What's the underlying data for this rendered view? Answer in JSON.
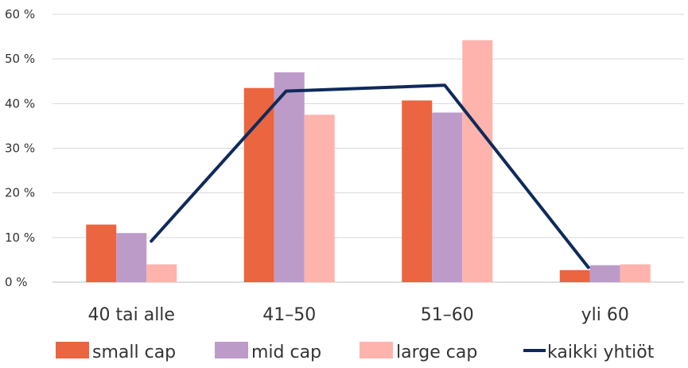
{
  "chart_data": {
    "type": "bar",
    "categories": [
      "40 tai alle",
      "41–50",
      "51–60",
      "yli 60"
    ],
    "series": [
      {
        "name": "small cap",
        "kind": "bar",
        "color": "#EA6540",
        "values": [
          12.9,
          43.5,
          40.7,
          2.7
        ]
      },
      {
        "name": "mid cap",
        "kind": "bar",
        "color": "#BC9BC9",
        "values": [
          11.0,
          47.0,
          38.0,
          3.8
        ]
      },
      {
        "name": "large cap",
        "kind": "bar",
        "color": "#FFB3AD",
        "values": [
          4.0,
          37.5,
          54.2,
          4.0
        ]
      },
      {
        "name": "kaikki yhtiöt",
        "kind": "line",
        "color": "#0F2A5A",
        "values": [
          9.2,
          42.8,
          44.1,
          3.3
        ]
      }
    ],
    "yticks": [
      {
        "value": 0,
        "label": "0 %"
      },
      {
        "value": 10,
        "label": "10 %"
      },
      {
        "value": 20,
        "label": "20 %"
      },
      {
        "value": 30,
        "label": "30 %"
      },
      {
        "value": 40,
        "label": "40 %"
      },
      {
        "value": 50,
        "label": "50 %"
      },
      {
        "value": 60,
        "label": "60 %"
      }
    ],
    "ylim": [
      0,
      60
    ],
    "grid": true,
    "legend_position": "bottom"
  }
}
